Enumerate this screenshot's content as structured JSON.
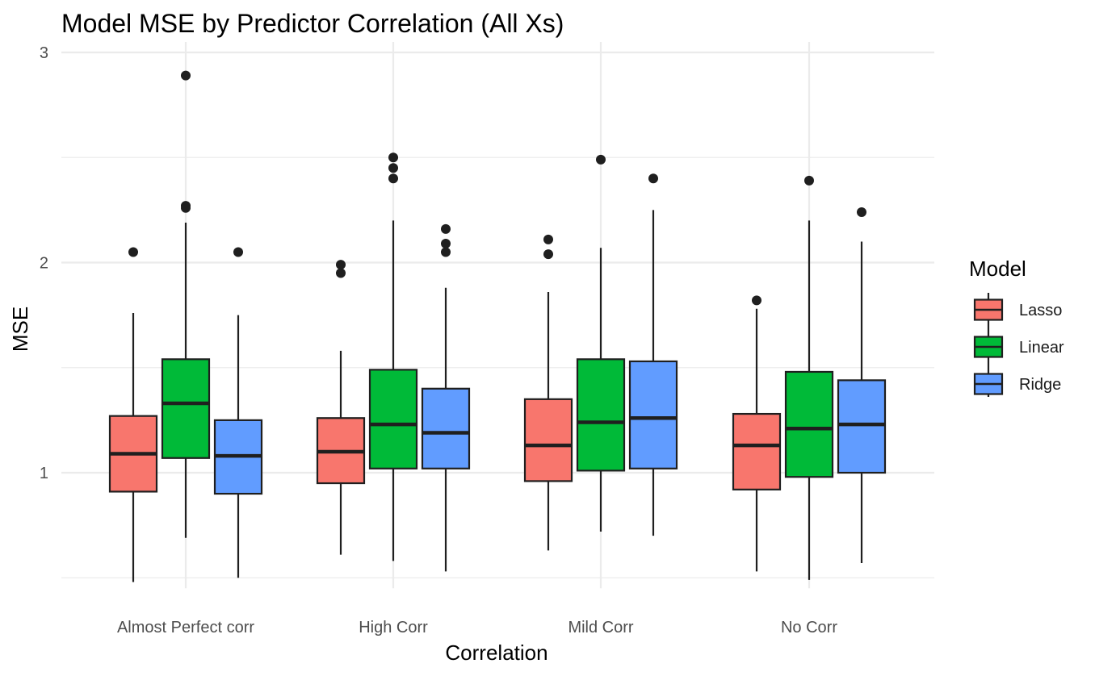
{
  "chart_data": {
    "type": "boxplot",
    "title": "Model MSE by Predictor Correlation (All Xs)",
    "xlabel": "Correlation",
    "ylabel": "MSE",
    "ylim": [
      0.45,
      3.05
    ],
    "yticks": [
      1,
      2,
      3
    ],
    "grid": true,
    "legend": {
      "title": "Model",
      "position": "right"
    },
    "categories": [
      "Almost Perfect corr",
      "High Corr",
      "Mild Corr",
      "No Corr"
    ],
    "series": [
      {
        "name": "Lasso",
        "color": "#F8766D",
        "boxes": [
          {
            "whisker_low": 0.48,
            "q1": 0.91,
            "median": 1.09,
            "q3": 1.27,
            "whisker_high": 1.76,
            "outliers": [
              2.05
            ]
          },
          {
            "whisker_low": 0.61,
            "q1": 0.95,
            "median": 1.1,
            "q3": 1.26,
            "whisker_high": 1.58,
            "outliers": [
              1.95,
              1.99
            ]
          },
          {
            "whisker_low": 0.63,
            "q1": 0.96,
            "median": 1.13,
            "q3": 1.35,
            "whisker_high": 1.86,
            "outliers": [
              2.04,
              2.11
            ]
          },
          {
            "whisker_low": 0.53,
            "q1": 0.92,
            "median": 1.13,
            "q3": 1.28,
            "whisker_high": 1.78,
            "outliers": [
              1.82
            ]
          }
        ]
      },
      {
        "name": "Linear",
        "color": "#00BA38",
        "boxes": [
          {
            "whisker_low": 0.69,
            "q1": 1.07,
            "median": 1.33,
            "q3": 1.54,
            "whisker_high": 2.19,
            "outliers": [
              2.26,
              2.27,
              2.89
            ]
          },
          {
            "whisker_low": 0.58,
            "q1": 1.02,
            "median": 1.23,
            "q3": 1.49,
            "whisker_high": 2.2,
            "outliers": [
              2.4,
              2.45,
              2.5
            ]
          },
          {
            "whisker_low": 0.72,
            "q1": 1.01,
            "median": 1.24,
            "q3": 1.54,
            "whisker_high": 2.07,
            "outliers": [
              2.49
            ]
          },
          {
            "whisker_low": 0.49,
            "q1": 0.98,
            "median": 1.21,
            "q3": 1.48,
            "whisker_high": 2.2,
            "outliers": [
              2.39
            ]
          }
        ]
      },
      {
        "name": "Ridge",
        "color": "#619CFF",
        "boxes": [
          {
            "whisker_low": 0.5,
            "q1": 0.9,
            "median": 1.08,
            "q3": 1.25,
            "whisker_high": 1.75,
            "outliers": [
              2.05
            ]
          },
          {
            "whisker_low": 0.53,
            "q1": 1.02,
            "median": 1.19,
            "q3": 1.4,
            "whisker_high": 1.88,
            "outliers": [
              2.05,
              2.09,
              2.16
            ]
          },
          {
            "whisker_low": 0.7,
            "q1": 1.02,
            "median": 1.26,
            "q3": 1.53,
            "whisker_high": 2.25,
            "outliers": [
              2.4
            ]
          },
          {
            "whisker_low": 0.57,
            "q1": 1.0,
            "median": 1.23,
            "q3": 1.44,
            "whisker_high": 2.1,
            "outliers": [
              2.24
            ]
          }
        ]
      }
    ]
  }
}
